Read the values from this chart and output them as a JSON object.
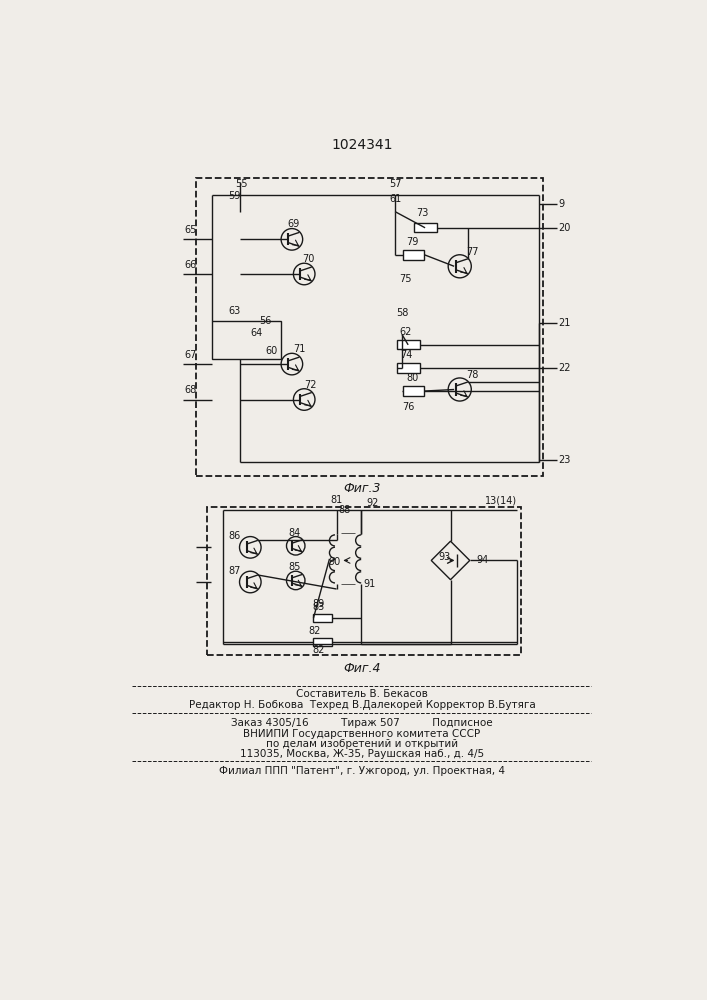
{
  "title": "1024341",
  "fig3_label": "Фиг.3",
  "fig4_label": "Фиг.4",
  "footer_line1": "Составитель В. Бекасов",
  "footer_line2": "Редактор Н. Бобкова  Техред В.Далекорей Корректор В.Бутяга",
  "footer_line3": "Заказ 4305/16          Тираж 507          Подписное",
  "footer_line4": "ВНИИПИ Государственного комитета СССР",
  "footer_line5": "по делам изобретений и открытий",
  "footer_line6": "113035, Москва, Ж-35, Раушская наб., д. 4/5",
  "footer_line7": "Филиал ППП \"Патент\", г. Ужгород, ул. Проектная, 4",
  "bg_color": "#f0ede8",
  "line_color": "#1a1a1a"
}
